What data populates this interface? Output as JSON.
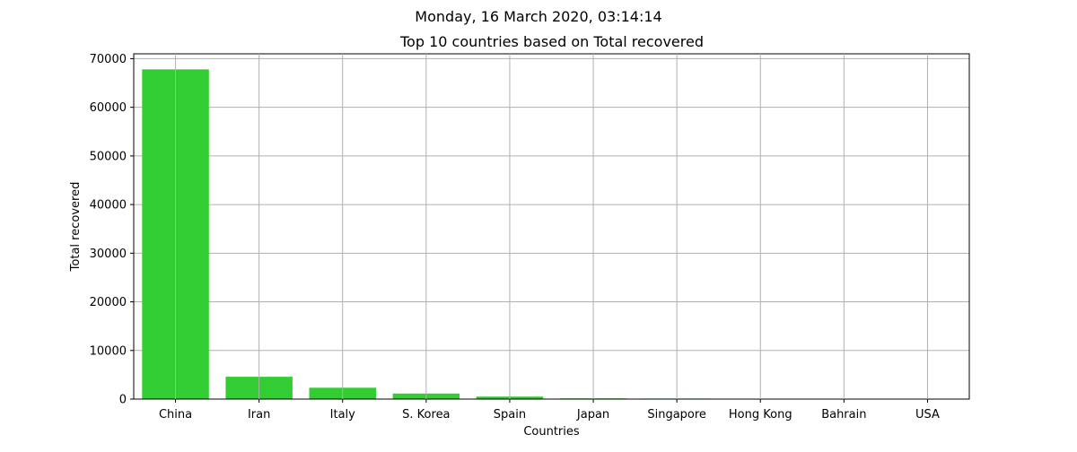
{
  "figure": {
    "suptitle": "Monday, 16 March 2020, 03:14:14"
  },
  "colors": {
    "bar": "#32cd32",
    "grid": "#b0b0b0",
    "axis": "#000000"
  },
  "chart_data": {
    "type": "bar",
    "title": "Top 10 countries based on Total recovered",
    "xlabel": "Countries",
    "ylabel": "Total recovered",
    "categories": [
      "China",
      "Iran",
      "Italy",
      "S. Korea",
      "Spain",
      "Japan",
      "Singapore",
      "Hong Kong",
      "Bahrain",
      "USA"
    ],
    "values": [
      67800,
      4590,
      2335,
      1137,
      517,
      144,
      105,
      78,
      60,
      17
    ],
    "ylim": [
      0,
      71000
    ],
    "yticks": [
      0,
      10000,
      20000,
      30000,
      40000,
      50000,
      60000,
      70000
    ],
    "grid": true
  }
}
